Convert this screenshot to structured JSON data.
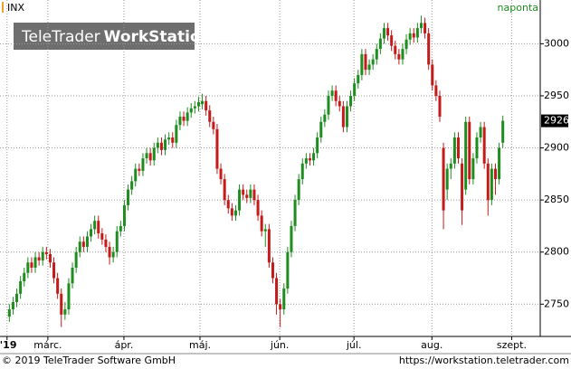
{
  "chart_data": {
    "type": "candlestick",
    "series": [
      {
        "name": "INX",
        "up_color": "#1f8c1f",
        "down_color": "#c41a1a",
        "ohlc": [
          [
            2738,
            2750,
            2733,
            2745
          ],
          [
            2745,
            2757,
            2740,
            2752
          ],
          [
            2752,
            2765,
            2747,
            2760
          ],
          [
            2760,
            2777,
            2755,
            2772
          ],
          [
            2772,
            2785,
            2767,
            2780
          ],
          [
            2780,
            2795,
            2775,
            2790
          ],
          [
            2790,
            2795,
            2780,
            2785
          ],
          [
            2785,
            2800,
            2780,
            2795
          ],
          [
            2795,
            2800,
            2787,
            2792
          ],
          [
            2792,
            2805,
            2787,
            2800
          ],
          [
            2800,
            2805,
            2793,
            2798
          ],
          [
            2798,
            2803,
            2785,
            2790
          ],
          [
            2790,
            2795,
            2770,
            2775
          ],
          [
            2775,
            2780,
            2755,
            2760
          ],
          [
            2760,
            2765,
            2728,
            2740
          ],
          [
            2740,
            2752,
            2735,
            2745
          ],
          [
            2745,
            2775,
            2740,
            2770
          ],
          [
            2770,
            2790,
            2765,
            2785
          ],
          [
            2785,
            2805,
            2780,
            2800
          ],
          [
            2800,
            2815,
            2795,
            2810
          ],
          [
            2810,
            2815,
            2800,
            2805
          ],
          [
            2805,
            2820,
            2800,
            2815
          ],
          [
            2815,
            2827,
            2810,
            2822
          ],
          [
            2822,
            2835,
            2817,
            2830
          ],
          [
            2830,
            2835,
            2813,
            2818
          ],
          [
            2818,
            2823,
            2807,
            2812
          ],
          [
            2812,
            2817,
            2800,
            2805
          ],
          [
            2805,
            2810,
            2788,
            2795
          ],
          [
            2795,
            2805,
            2790,
            2800
          ],
          [
            2800,
            2825,
            2795,
            2820
          ],
          [
            2820,
            2830,
            2815,
            2825
          ],
          [
            2825,
            2850,
            2820,
            2845
          ],
          [
            2845,
            2865,
            2840,
            2860
          ],
          [
            2860,
            2873,
            2855,
            2868
          ],
          [
            2868,
            2885,
            2863,
            2880
          ],
          [
            2880,
            2885,
            2873,
            2878
          ],
          [
            2878,
            2895,
            2873,
            2890
          ],
          [
            2890,
            2900,
            2885,
            2895
          ],
          [
            2895,
            2900,
            2883,
            2888
          ],
          [
            2888,
            2905,
            2883,
            2900
          ],
          [
            2900,
            2910,
            2895,
            2905
          ],
          [
            2905,
            2910,
            2893,
            2898
          ],
          [
            2898,
            2913,
            2893,
            2908
          ],
          [
            2908,
            2915,
            2903,
            2910
          ],
          [
            2910,
            2915,
            2900,
            2905
          ],
          [
            2905,
            2927,
            2900,
            2922
          ],
          [
            2922,
            2935,
            2917,
            2930
          ],
          [
            2930,
            2935,
            2921,
            2926
          ],
          [
            2926,
            2939,
            2921,
            2934
          ],
          [
            2934,
            2943,
            2929,
            2938
          ],
          [
            2938,
            2945,
            2933,
            2940
          ],
          [
            2940,
            2949,
            2935,
            2944
          ],
          [
            2942,
            2952,
            2937,
            2945
          ],
          [
            2945,
            2950,
            2931,
            2936
          ],
          [
            2936,
            2941,
            2920,
            2925
          ],
          [
            2925,
            2930,
            2913,
            2918
          ],
          [
            2918,
            2923,
            2875,
            2880
          ],
          [
            2880,
            2885,
            2865,
            2870
          ],
          [
            2870,
            2875,
            2845,
            2850
          ],
          [
            2850,
            2855,
            2837,
            2842
          ],
          [
            2842,
            2847,
            2830,
            2835
          ],
          [
            2835,
            2845,
            2830,
            2840
          ],
          [
            2840,
            2865,
            2835,
            2860
          ],
          [
            2860,
            2865,
            2850,
            2855
          ],
          [
            2855,
            2860,
            2847,
            2852
          ],
          [
            2852,
            2865,
            2847,
            2860
          ],
          [
            2860,
            2865,
            2845,
            2850
          ],
          [
            2850,
            2855,
            2830,
            2835
          ],
          [
            2835,
            2840,
            2815,
            2820
          ],
          [
            2820,
            2827,
            2805,
            2822
          ],
          [
            2822,
            2827,
            2785,
            2790
          ],
          [
            2790,
            2795,
            2770,
            2775
          ],
          [
            2775,
            2780,
            2740,
            2750
          ],
          [
            2750,
            2755,
            2728,
            2745
          ],
          [
            2745,
            2770,
            2740,
            2765
          ],
          [
            2765,
            2805,
            2760,
            2800
          ],
          [
            2800,
            2830,
            2795,
            2825
          ],
          [
            2825,
            2855,
            2820,
            2850
          ],
          [
            2850,
            2875,
            2845,
            2870
          ],
          [
            2870,
            2890,
            2865,
            2885
          ],
          [
            2885,
            2895,
            2880,
            2890
          ],
          [
            2890,
            2895,
            2883,
            2888
          ],
          [
            2888,
            2900,
            2883,
            2895
          ],
          [
            2895,
            2915,
            2890,
            2910
          ],
          [
            2910,
            2930,
            2905,
            2925
          ],
          [
            2925,
            2937,
            2920,
            2932
          ],
          [
            2932,
            2955,
            2927,
            2950
          ],
          [
            2950,
            2960,
            2945,
            2955
          ],
          [
            2955,
            2960,
            2940,
            2945
          ],
          [
            2945,
            2950,
            2935,
            2940
          ],
          [
            2940,
            2945,
            2915,
            2920
          ],
          [
            2920,
            2945,
            2915,
            2940
          ],
          [
            2940,
            2955,
            2935,
            2950
          ],
          [
            2950,
            2967,
            2945,
            2962
          ],
          [
            2962,
            2975,
            2957,
            2970
          ],
          [
            2970,
            2995,
            2965,
            2990
          ],
          [
            2990,
            2995,
            2970,
            2975
          ],
          [
            2975,
            2985,
            2970,
            2980
          ],
          [
            2980,
            2990,
            2975,
            2985
          ],
          [
            2985,
            3000,
            2980,
            2995
          ],
          [
            2995,
            3010,
            2990,
            3005
          ],
          [
            3005,
            3020,
            3000,
            3015
          ],
          [
            3015,
            3020,
            3003,
            3008
          ],
          [
            3008,
            3013,
            2993,
            2998
          ],
          [
            2998,
            3003,
            2985,
            2990
          ],
          [
            2990,
            2995,
            2980,
            2985
          ],
          [
            2985,
            3000,
            2980,
            2995
          ],
          [
            2995,
            3009,
            2990,
            3004
          ],
          [
            3004,
            3015,
            2999,
            3010
          ],
          [
            3010,
            3015,
            3001,
            3006
          ],
          [
            3006,
            3020,
            3001,
            3015
          ],
          [
            3015,
            3027,
            3010,
            3020
          ],
          [
            3020,
            3025,
            3005,
            3010
          ],
          [
            3010,
            3015,
            2975,
            2980
          ],
          [
            2980,
            2985,
            2955,
            2960
          ],
          [
            2960,
            2965,
            2945,
            2950
          ],
          [
            2950,
            2955,
            2925,
            2930
          ],
          [
            2900,
            2905,
            2822,
            2840
          ],
          [
            2860,
            2885,
            2850,
            2880
          ],
          [
            2880,
            2890,
            2870,
            2885
          ],
          [
            2885,
            2915,
            2880,
            2910
          ],
          [
            2910,
            2915,
            2885,
            2890
          ],
          [
            2885,
            2890,
            2826,
            2840
          ],
          [
            2860,
            2930,
            2855,
            2925
          ],
          [
            2925,
            2930,
            2865,
            2870
          ],
          [
            2870,
            2895,
            2865,
            2890
          ],
          [
            2890,
            2915,
            2885,
            2910
          ],
          [
            2910,
            2925,
            2905,
            2920
          ],
          [
            2920,
            2925,
            2880,
            2885
          ],
          [
            2885,
            2890,
            2835,
            2850
          ],
          [
            2850,
            2885,
            2845,
            2880
          ],
          [
            2880,
            2885,
            2855,
            2870
          ],
          [
            2870,
            2905,
            2865,
            2900
          ],
          [
            2905,
            2931,
            2900,
            2926
          ]
        ]
      }
    ],
    "period": "naponta",
    "brand": {
      "light": "TeleTrader",
      "bold": "WorkStation"
    },
    "ylim": [
      2719,
      3042
    ],
    "yticks": [
      2750,
      2800,
      2850,
      2900,
      2950,
      3000
    ],
    "xlim": [
      -2.4,
      143.2
    ],
    "xticks": [
      {
        "value": -0.5,
        "label": "'19"
      },
      {
        "value": 10.5,
        "label": "márc."
      },
      {
        "value": 31,
        "label": "ápr."
      },
      {
        "value": 51.5,
        "label": "máj."
      },
      {
        "value": 73,
        "label": "jún."
      },
      {
        "value": 93,
        "label": "júl."
      },
      {
        "value": 114,
        "label": "aug."
      },
      {
        "value": 135.5,
        "label": "szept."
      }
    ],
    "grid": true,
    "footer": {
      "left": "© 2019 TeleTrader Software GmbH",
      "right": "https://workstation.teletrader.com"
    }
  }
}
